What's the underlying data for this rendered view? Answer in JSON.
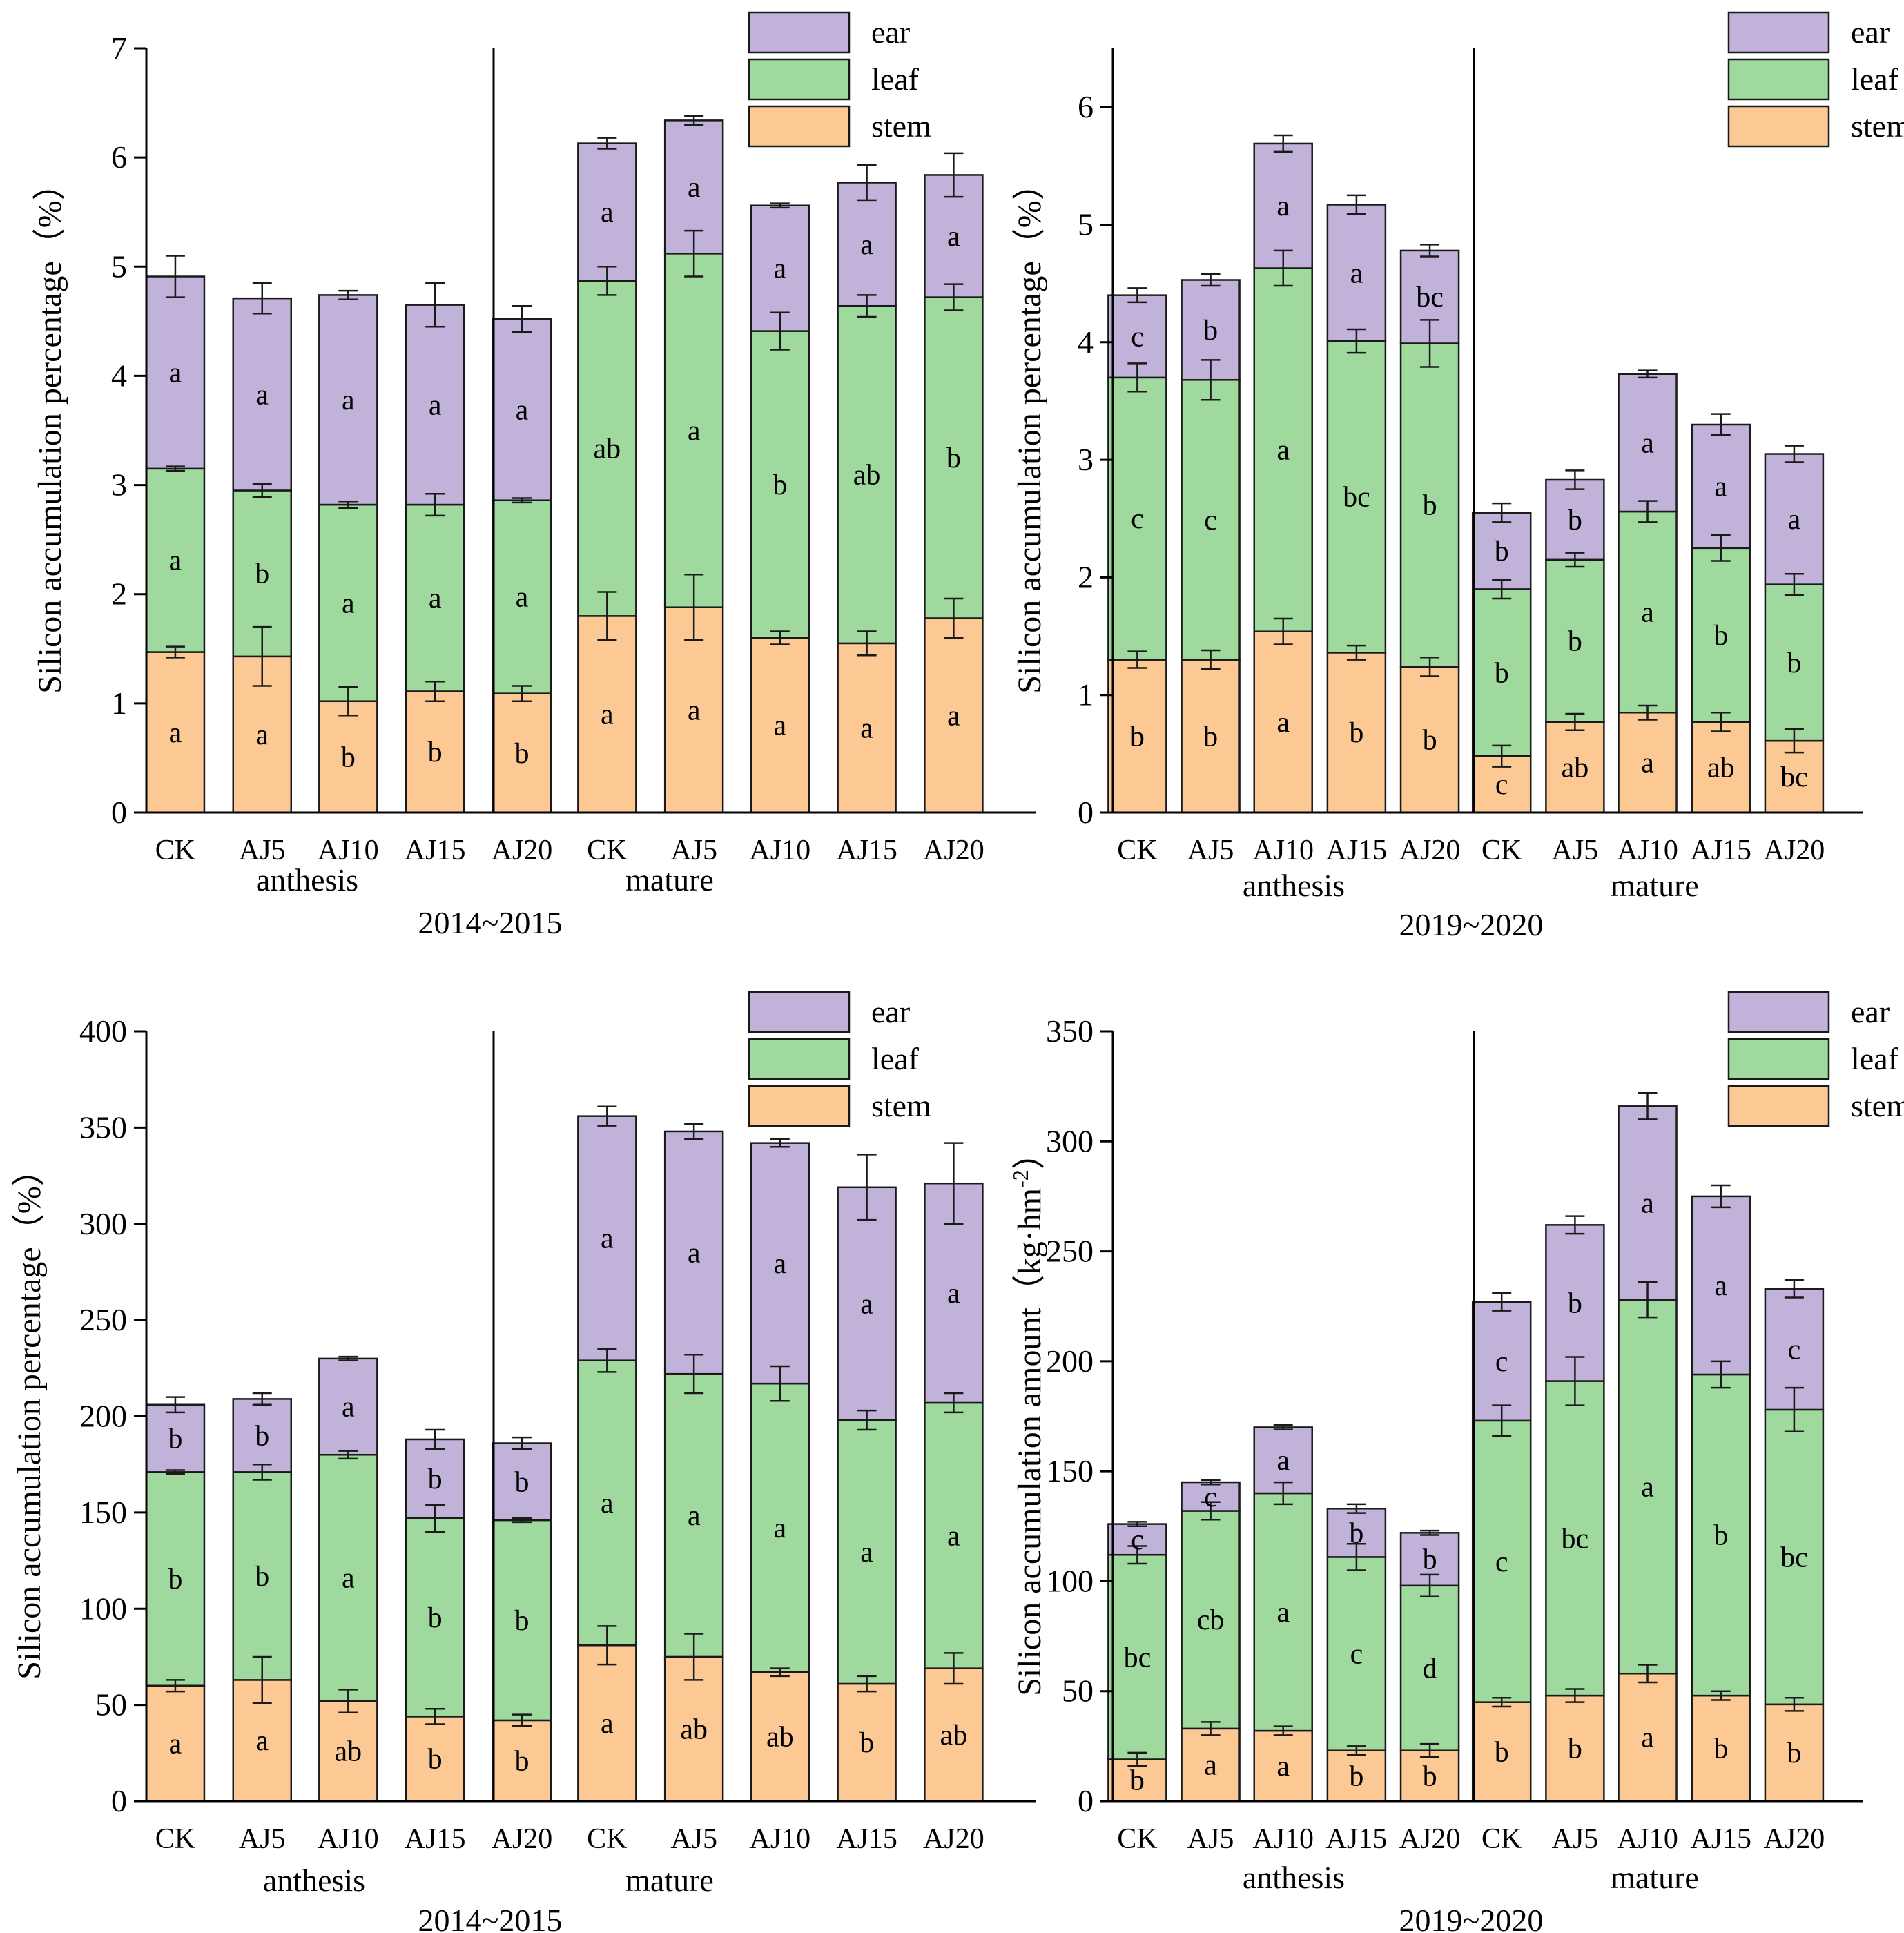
{
  "colors": {
    "stem": "#fcc995",
    "leaf": "#9fd99e",
    "ear": "#c0b2d9",
    "stroke": "#1a1a1a"
  },
  "legend": [
    {
      "key": "ear",
      "label": "ear"
    },
    {
      "key": "leaf",
      "label": "leaf"
    },
    {
      "key": "stem",
      "label": "stem"
    }
  ],
  "chart_data": [
    {
      "type": "bar",
      "stacked": true,
      "title": "",
      "period": "2014~2015",
      "ylabel": "Silicon accumulation percentage（%）",
      "ylim": [
        0,
        7
      ],
      "yticks": [
        0,
        1,
        2,
        3,
        4,
        5,
        6,
        7
      ],
      "categories": [
        "CK",
        "AJ5",
        "AJ10",
        "AJ15",
        "AJ20",
        "CK",
        "AJ5",
        "AJ10",
        "AJ15",
        "AJ20"
      ],
      "groups": [
        {
          "label": "anthesis",
          "count": 5
        },
        {
          "label": "mature",
          "count": 5
        }
      ],
      "series": [
        {
          "name": "stem",
          "values": [
            1.47,
            1.43,
            1.02,
            1.11,
            1.09,
            1.8,
            1.88,
            1.6,
            1.55,
            1.78
          ],
          "errors": [
            0.05,
            0.27,
            0.13,
            0.09,
            0.07,
            0.22,
            0.3,
            0.06,
            0.11,
            0.18
          ],
          "letters": [
            "a",
            "a",
            "b",
            "b",
            "b",
            "a",
            "a",
            "a",
            "a",
            "a"
          ]
        },
        {
          "name": "leaf",
          "values": [
            1.68,
            1.52,
            1.8,
            1.71,
            1.77,
            3.07,
            3.24,
            2.81,
            3.09,
            2.94
          ],
          "errors": [
            0.02,
            0.06,
            0.03,
            0.1,
            0.02,
            0.13,
            0.21,
            0.17,
            0.1,
            0.12
          ],
          "letters": [
            "a",
            "b",
            "a",
            "a",
            "a",
            "ab",
            "a",
            "b",
            "ab",
            "b"
          ]
        },
        {
          "name": "ear",
          "values": [
            1.76,
            1.76,
            1.92,
            1.83,
            1.66,
            1.26,
            1.22,
            1.15,
            1.13,
            1.12
          ],
          "errors": [
            0.19,
            0.14,
            0.04,
            0.2,
            0.12,
            0.05,
            0.04,
            0.02,
            0.16,
            0.2
          ],
          "letters": [
            "a",
            "a",
            "a",
            "a",
            "a",
            "a",
            "a",
            "a",
            "a",
            "a"
          ]
        }
      ]
    },
    {
      "type": "bar",
      "stacked": true,
      "title": "",
      "period": "2019~2020",
      "ylabel": "Silicon accumulation percentage（%）",
      "ylim": [
        0,
        6.5
      ],
      "yticks": [
        0,
        1,
        2,
        3,
        4,
        5,
        6
      ],
      "categories": [
        "CK",
        "AJ5",
        "AJ10",
        "AJ15",
        "AJ20",
        "CK",
        "AJ5",
        "AJ10",
        "AJ15",
        "AJ20"
      ],
      "groups": [
        {
          "label": "anthesis",
          "count": 5
        },
        {
          "label": "mature",
          "count": 5
        }
      ],
      "series": [
        {
          "name": "stem",
          "values": [
            1.3,
            1.3,
            1.54,
            1.36,
            1.24,
            0.48,
            0.77,
            0.85,
            0.77,
            0.61
          ],
          "errors": [
            0.07,
            0.08,
            0.11,
            0.06,
            0.08,
            0.09,
            0.07,
            0.06,
            0.08,
            0.1
          ],
          "letters": [
            "b",
            "b",
            "a",
            "b",
            "b",
            "c",
            "ab",
            "a",
            "ab",
            "bc"
          ]
        },
        {
          "name": "leaf",
          "values": [
            2.4,
            2.38,
            3.09,
            2.65,
            2.75,
            1.42,
            1.38,
            1.71,
            1.48,
            1.33
          ],
          "errors": [
            0.12,
            0.17,
            0.15,
            0.1,
            0.2,
            0.08,
            0.06,
            0.09,
            0.11,
            0.09
          ],
          "letters": [
            "c",
            "c",
            "a",
            "bc",
            "b",
            "b",
            "b",
            "a",
            "b",
            "b"
          ]
        },
        {
          "name": "ear",
          "values": [
            0.7,
            0.85,
            1.06,
            1.16,
            0.79,
            0.65,
            0.68,
            1.17,
            1.05,
            1.11
          ],
          "errors": [
            0.06,
            0.05,
            0.07,
            0.08,
            0.05,
            0.08,
            0.08,
            0.03,
            0.09,
            0.07
          ],
          "letters": [
            "c",
            "b",
            "a",
            "a",
            "bc",
            "b",
            "b",
            "a",
            "a",
            "a"
          ]
        }
      ]
    },
    {
      "type": "bar",
      "stacked": true,
      "title": "",
      "period": "2014~2015",
      "ylabel": "Silicon accumulation percentage（%）",
      "ylim": [
        0,
        400
      ],
      "yticks": [
        0,
        50,
        100,
        150,
        200,
        250,
        300,
        350,
        400
      ],
      "categories": [
        "CK",
        "AJ5",
        "AJ10",
        "AJ15",
        "AJ20",
        "CK",
        "AJ5",
        "AJ10",
        "AJ15",
        "AJ20"
      ],
      "groups": [
        {
          "label": "anthesis",
          "count": 5
        },
        {
          "label": "mature",
          "count": 5
        }
      ],
      "series": [
        {
          "name": "stem",
          "values": [
            60,
            63,
            52,
            44,
            42,
            81,
            75,
            67,
            61,
            69
          ],
          "errors": [
            3,
            12,
            6,
            4,
            3,
            10,
            12,
            2,
            4,
            8
          ],
          "letters": [
            "a",
            "a",
            "ab",
            "b",
            "b",
            "a",
            "ab",
            "ab",
            "b",
            "ab"
          ]
        },
        {
          "name": "leaf",
          "values": [
            111,
            108,
            128,
            103,
            104,
            148,
            147,
            150,
            137,
            138
          ],
          "errors": [
            1,
            4,
            2,
            7,
            1,
            6,
            10,
            9,
            5,
            5
          ],
          "letters": [
            "b",
            "b",
            "a",
            "b",
            "b",
            "a",
            "a",
            "a",
            "a",
            "a"
          ]
        },
        {
          "name": "ear",
          "values": [
            35,
            38,
            50,
            41,
            40,
            127,
            126,
            125,
            121,
            114
          ],
          "errors": [
            4,
            3,
            1,
            5,
            3,
            5,
            4,
            2,
            17,
            21
          ],
          "letters": [
            "b",
            "b",
            "a",
            "b",
            "b",
            "a",
            "a",
            "a",
            "a",
            "a"
          ]
        }
      ]
    },
    {
      "type": "bar",
      "stacked": true,
      "title": "",
      "period": "2019~2020",
      "ylabel": "Silicon accumulation amount（kg·hm",
      "ylabel_sup": "-2",
      "ylabel_end": "）",
      "ylim": [
        0,
        350
      ],
      "yticks": [
        0,
        50,
        100,
        150,
        200,
        250,
        300,
        350
      ],
      "categories": [
        "CK",
        "AJ5",
        "AJ10",
        "AJ15",
        "AJ20",
        "CK",
        "AJ5",
        "AJ10",
        "AJ15",
        "AJ20"
      ],
      "groups": [
        {
          "label": "anthesis",
          "count": 5
        },
        {
          "label": "mature",
          "count": 5
        }
      ],
      "series": [
        {
          "name": "stem",
          "values": [
            19,
            33,
            32,
            23,
            23,
            45,
            48,
            58,
            48,
            44
          ],
          "errors": [
            3,
            3,
            2,
            2,
            3,
            2,
            3,
            4,
            2,
            3
          ],
          "letters": [
            "b",
            "a",
            "a",
            "b",
            "b",
            "b",
            "b",
            "a",
            "b",
            "b"
          ]
        },
        {
          "name": "leaf",
          "values": [
            93,
            99,
            108,
            88,
            75,
            128,
            143,
            170,
            146,
            134
          ],
          "errors": [
            4,
            4,
            5,
            6,
            5,
            7,
            11,
            8,
            6,
            10
          ],
          "letters": [
            "bc",
            "cb",
            "a",
            "c",
            "d",
            "c",
            "bc",
            "a",
            "b",
            "bc"
          ]
        },
        {
          "name": "ear",
          "values": [
            14,
            13,
            30,
            22,
            24,
            54,
            71,
            88,
            81,
            55
          ],
          "errors": [
            1,
            1,
            1,
            2,
            1,
            4,
            4,
            6,
            5,
            4
          ],
          "letters": [
            "c",
            "c",
            "a",
            "b",
            "b",
            "c",
            "b",
            "a",
            "a",
            "c"
          ]
        }
      ]
    }
  ]
}
